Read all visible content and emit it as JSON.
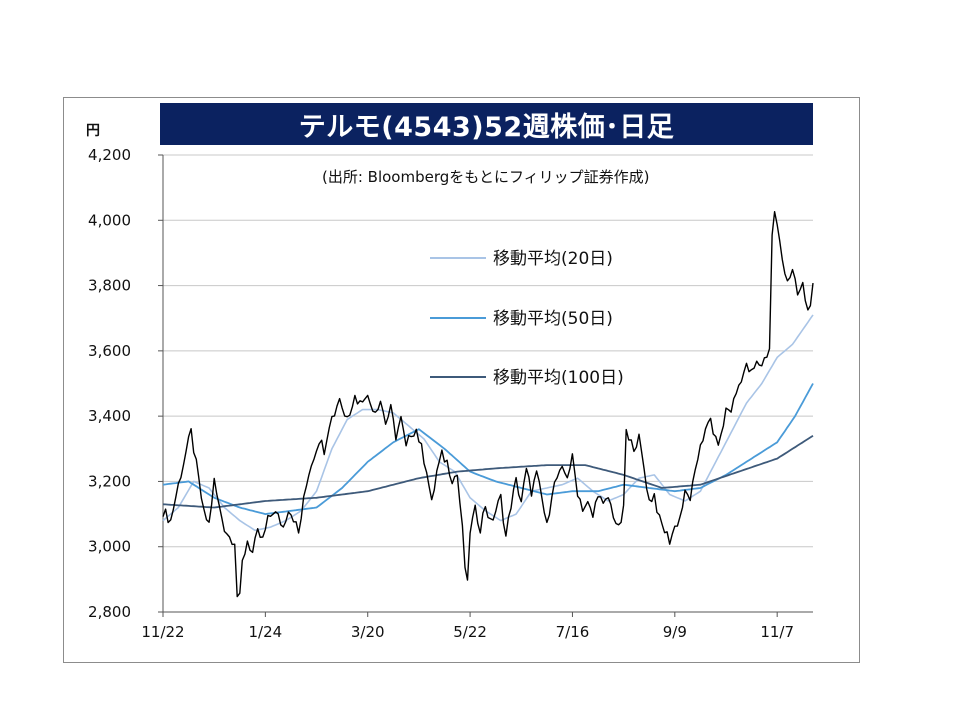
{
  "header": {
    "title": "テルモ(4543)52週株価･日足",
    "unit": "円",
    "source": "(出所: Bloombergをもとにフィリップ証券作成)"
  },
  "chart_data": {
    "type": "line",
    "ylim": [
      2800,
      4200
    ],
    "y_ticks": [
      2800,
      3000,
      3200,
      3400,
      3600,
      3800,
      4000,
      4200
    ],
    "y_tick_labels": [
      "2,800",
      "3,000",
      "3,200",
      "3,400",
      "3,600",
      "3,800",
      "4,000",
      "4,200"
    ],
    "x_tick_labels": [
      "11/22",
      "1/24",
      "3/20",
      "5/22",
      "7/16",
      "9/9",
      "11/7"
    ],
    "x_tick_index": [
      0,
      40,
      80,
      120,
      160,
      200,
      240
    ],
    "x_count": 255,
    "grid": "horizontal",
    "legend_position": "upper-center-right",
    "colors": {
      "price": "#000000",
      "ma20": "#a9c4e6",
      "ma50": "#4a9bd8",
      "ma100": "#3e5a7a",
      "grid": "#c8c8c8",
      "title_bg": "#0b2260"
    },
    "series": [
      {
        "name": "price",
        "anchors": [
          [
            0,
            3110
          ],
          [
            3,
            3080
          ],
          [
            6,
            3190
          ],
          [
            9,
            3290
          ],
          [
            11,
            3350
          ],
          [
            13,
            3250
          ],
          [
            16,
            3100
          ],
          [
            18,
            3070
          ],
          [
            20,
            3200
          ],
          [
            22,
            3120
          ],
          [
            24,
            3060
          ],
          [
            26,
            3030
          ],
          [
            28,
            3020
          ],
          [
            29,
            2850
          ],
          [
            30,
            2840
          ],
          [
            31,
            2950
          ],
          [
            33,
            3020
          ],
          [
            35,
            2980
          ],
          [
            37,
            3040
          ],
          [
            39,
            3020
          ],
          [
            41,
            3080
          ],
          [
            43,
            3110
          ],
          [
            45,
            3090
          ],
          [
            47,
            3060
          ],
          [
            49,
            3120
          ],
          [
            51,
            3090
          ],
          [
            53,
            3040
          ],
          [
            55,
            3140
          ],
          [
            57,
            3230
          ],
          [
            59,
            3280
          ],
          [
            61,
            3330
          ],
          [
            63,
            3300
          ],
          [
            65,
            3380
          ],
          [
            67,
            3410
          ],
          [
            69,
            3460
          ],
          [
            71,
            3400
          ],
          [
            73,
            3420
          ],
          [
            75,
            3460
          ],
          [
            77,
            3440
          ],
          [
            79,
            3470
          ],
          [
            81,
            3440
          ],
          [
            83,
            3420
          ],
          [
            85,
            3450
          ],
          [
            87,
            3380
          ],
          [
            89,
            3420
          ],
          [
            91,
            3340
          ],
          [
            93,
            3390
          ],
          [
            95,
            3300
          ],
          [
            97,
            3350
          ],
          [
            99,
            3360
          ],
          [
            101,
            3300
          ],
          [
            103,
            3240
          ],
          [
            105,
            3130
          ],
          [
            107,
            3230
          ],
          [
            109,
            3280
          ],
          [
            111,
            3260
          ],
          [
            113,
            3210
          ],
          [
            115,
            3220
          ],
          [
            117,
            3050
          ],
          [
            118,
            2940
          ],
          [
            119,
            2880
          ],
          [
            120,
            3050
          ],
          [
            122,
            3110
          ],
          [
            124,
            3060
          ],
          [
            126,
            3130
          ],
          [
            128,
            3070
          ],
          [
            130,
            3110
          ],
          [
            132,
            3150
          ],
          [
            134,
            3030
          ],
          [
            136,
            3130
          ],
          [
            138,
            3200
          ],
          [
            140,
            3140
          ],
          [
            142,
            3230
          ],
          [
            144,
            3170
          ],
          [
            146,
            3220
          ],
          [
            148,
            3150
          ],
          [
            150,
            3060
          ],
          [
            152,
            3170
          ],
          [
            154,
            3210
          ],
          [
            156,
            3230
          ],
          [
            158,
            3220
          ],
          [
            160,
            3270
          ],
          [
            162,
            3170
          ],
          [
            164,
            3120
          ],
          [
            166,
            3130
          ],
          [
            168,
            3090
          ],
          [
            170,
            3170
          ],
          [
            172,
            3120
          ],
          [
            174,
            3150
          ],
          [
            176,
            3100
          ],
          [
            178,
            3050
          ],
          [
            180,
            3110
          ],
          [
            181,
            3360
          ],
          [
            182,
            3320
          ],
          [
            184,
            3310
          ],
          [
            186,
            3330
          ],
          [
            188,
            3240
          ],
          [
            190,
            3140
          ],
          [
            192,
            3160
          ],
          [
            194,
            3080
          ],
          [
            196,
            3050
          ],
          [
            198,
            3020
          ],
          [
            200,
            3060
          ],
          [
            202,
            3090
          ],
          [
            204,
            3160
          ],
          [
            206,
            3150
          ],
          [
            208,
            3220
          ],
          [
            210,
            3320
          ],
          [
            212,
            3350
          ],
          [
            214,
            3390
          ],
          [
            216,
            3320
          ],
          [
            218,
            3330
          ],
          [
            220,
            3420
          ],
          [
            222,
            3420
          ],
          [
            224,
            3470
          ],
          [
            226,
            3520
          ],
          [
            228,
            3550
          ],
          [
            230,
            3530
          ],
          [
            232,
            3560
          ],
          [
            234,
            3560
          ],
          [
            236,
            3590
          ],
          [
            237,
            3610
          ],
          [
            238,
            3950
          ],
          [
            239,
            4030
          ],
          [
            240,
            3980
          ],
          [
            242,
            3880
          ],
          [
            244,
            3820
          ],
          [
            246,
            3840
          ],
          [
            248,
            3770
          ],
          [
            250,
            3800
          ],
          [
            252,
            3720
          ],
          [
            254,
            3790
          ]
        ]
      },
      {
        "name": "移動平均(20日)",
        "anchors": [
          [
            0,
            3080
          ],
          [
            6,
            3120
          ],
          [
            12,
            3200
          ],
          [
            18,
            3180
          ],
          [
            24,
            3120
          ],
          [
            30,
            3080
          ],
          [
            36,
            3050
          ],
          [
            42,
            3060
          ],
          [
            48,
            3080
          ],
          [
            54,
            3110
          ],
          [
            60,
            3170
          ],
          [
            66,
            3300
          ],
          [
            72,
            3390
          ],
          [
            78,
            3420
          ],
          [
            84,
            3420
          ],
          [
            90,
            3410
          ],
          [
            96,
            3370
          ],
          [
            102,
            3330
          ],
          [
            108,
            3260
          ],
          [
            114,
            3230
          ],
          [
            120,
            3150
          ],
          [
            126,
            3110
          ],
          [
            132,
            3080
          ],
          [
            138,
            3100
          ],
          [
            144,
            3170
          ],
          [
            150,
            3180
          ],
          [
            156,
            3190
          ],
          [
            162,
            3210
          ],
          [
            168,
            3170
          ],
          [
            174,
            3140
          ],
          [
            180,
            3160
          ],
          [
            186,
            3210
          ],
          [
            192,
            3220
          ],
          [
            198,
            3160
          ],
          [
            204,
            3140
          ],
          [
            210,
            3170
          ],
          [
            216,
            3260
          ],
          [
            222,
            3350
          ],
          [
            228,
            3440
          ],
          [
            234,
            3500
          ],
          [
            240,
            3580
          ],
          [
            246,
            3620
          ],
          [
            254,
            3710
          ]
        ]
      },
      {
        "name": "移動平均(50日)",
        "anchors": [
          [
            0,
            3190
          ],
          [
            10,
            3200
          ],
          [
            20,
            3150
          ],
          [
            30,
            3120
          ],
          [
            40,
            3100
          ],
          [
            50,
            3110
          ],
          [
            60,
            3120
          ],
          [
            70,
            3180
          ],
          [
            80,
            3260
          ],
          [
            90,
            3320
          ],
          [
            100,
            3360
          ],
          [
            110,
            3300
          ],
          [
            120,
            3230
          ],
          [
            130,
            3200
          ],
          [
            140,
            3180
          ],
          [
            150,
            3160
          ],
          [
            160,
            3170
          ],
          [
            170,
            3170
          ],
          [
            180,
            3190
          ],
          [
            190,
            3180
          ],
          [
            200,
            3170
          ],
          [
            210,
            3180
          ],
          [
            220,
            3220
          ],
          [
            230,
            3270
          ],
          [
            240,
            3320
          ],
          [
            247,
            3400
          ],
          [
            254,
            3500
          ]
        ]
      },
      {
        "name": "移動平均(100日)",
        "anchors": [
          [
            0,
            3130
          ],
          [
            20,
            3120
          ],
          [
            40,
            3140
          ],
          [
            60,
            3150
          ],
          [
            80,
            3170
          ],
          [
            100,
            3210
          ],
          [
            115,
            3230
          ],
          [
            130,
            3240
          ],
          [
            150,
            3250
          ],
          [
            165,
            3250
          ],
          [
            180,
            3220
          ],
          [
            195,
            3180
          ],
          [
            210,
            3190
          ],
          [
            225,
            3230
          ],
          [
            240,
            3270
          ],
          [
            254,
            3340
          ]
        ]
      }
    ]
  }
}
